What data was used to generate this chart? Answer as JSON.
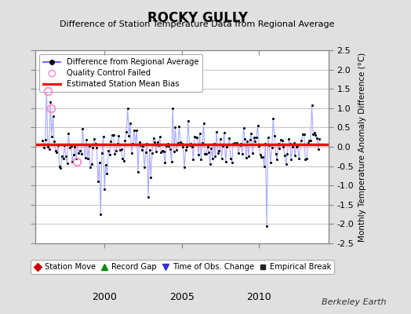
{
  "title": "ROCKY GULLY",
  "subtitle": "Difference of Station Temperature Data from Regional Average",
  "ylabel": "Monthly Temperature Anomaly Difference (°C)",
  "credit": "Berkeley Earth",
  "ylim": [
    -2.5,
    2.5
  ],
  "xlim": [
    1995.5,
    2014.5
  ],
  "bias_value": 0.07,
  "background_color": "#e0e0e0",
  "plot_bg_color": "#ffffff",
  "line_color": "#5555ff",
  "line_color_light": "#aaaaff",
  "marker_color": "#000000",
  "bias_color": "#ff0000",
  "qc_color": "#ff88cc",
  "x_ticks": [
    2000,
    2005,
    2010
  ],
  "y_ticks": [
    -2.5,
    -2.0,
    -1.5,
    -1.0,
    -0.5,
    0.0,
    0.5,
    1.0,
    1.5,
    2.0,
    2.5
  ],
  "seed": 42,
  "n_points": 216,
  "t_start": 1996.0,
  "t_end": 2013.9
}
